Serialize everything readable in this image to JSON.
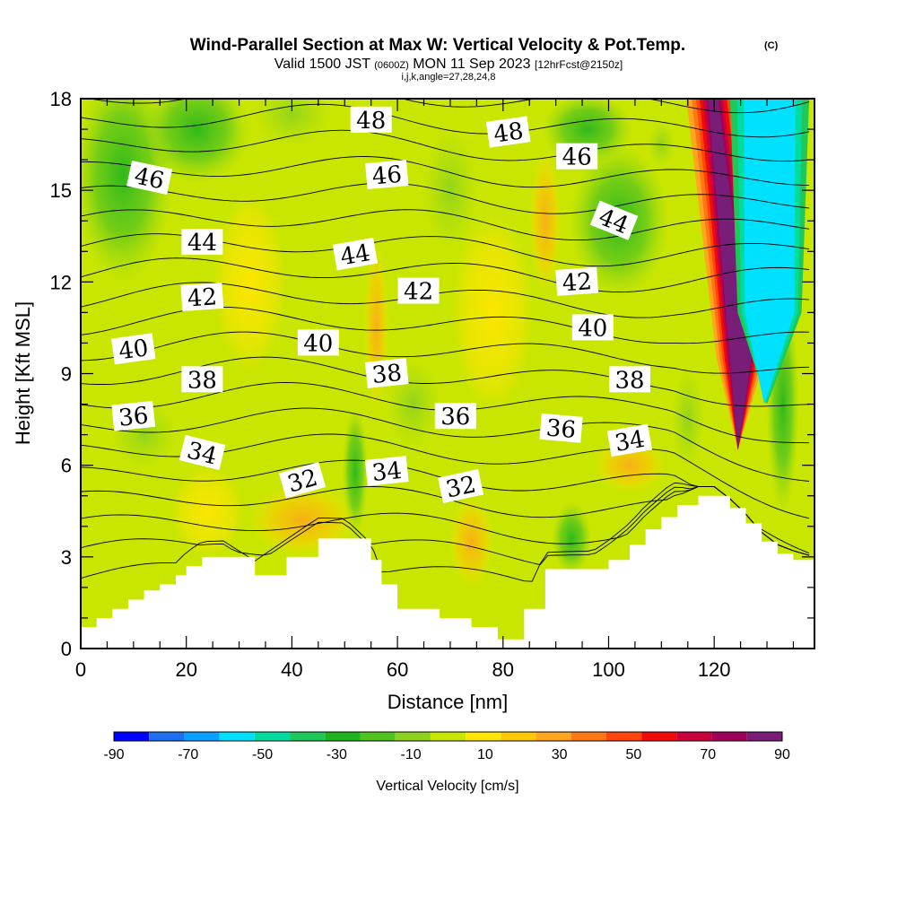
{
  "chart_data": {
    "type": "heatmap",
    "title": "Wind-Parallel Section at Max W: Vertical Velocity & Pot.Temp.",
    "title_mark": "(C)",
    "subtitle_valid": "Valid 1500 JST",
    "subtitle_utc": "(0600Z)",
    "subtitle_date": "MON 11 Sep 2023",
    "subtitle_fcst": "[12hrFcst@2150z]",
    "subtitle2": "i,j,k,angle=27,28,24,8",
    "xlabel": "Distance [nm]",
    "ylabel": "Height [Kft MSL]",
    "xlim": [
      0,
      139
    ],
    "ylim": [
      0,
      18
    ],
    "x_ticks": [
      0,
      20,
      40,
      60,
      80,
      100,
      120
    ],
    "y_ticks": [
      0,
      3,
      6,
      9,
      12,
      15,
      18
    ],
    "x_tick_labels": [
      "0",
      "20",
      "40",
      "60",
      "80",
      "100",
      "120"
    ],
    "y_tick_labels": [
      "0",
      "3",
      "6",
      "9",
      "12",
      "15",
      "18"
    ],
    "colorbar": {
      "label": "Vertical Velocity [cm/s]",
      "tick_values": [
        -90,
        -70,
        -50,
        -30,
        -10,
        10,
        30,
        50,
        70,
        90
      ],
      "tick_labels": [
        "-90",
        "-70",
        "-50",
        "-30",
        "-10",
        "10",
        "30",
        "50",
        "70",
        "90"
      ],
      "bounds": [
        -90,
        -80,
        -70,
        -60,
        -50,
        -40,
        -30,
        -20,
        -10,
        0,
        10,
        20,
        30,
        40,
        50,
        60,
        70,
        80,
        90
      ],
      "colors": [
        "#0000ff",
        "#1e6ef0",
        "#0aa0ff",
        "#00e1ff",
        "#00dca0",
        "#1ec85a",
        "#1eb41e",
        "#50c31e",
        "#8cd21e",
        "#c8e600",
        "#ffe600",
        "#ffc800",
        "#ffa51e",
        "#ff7814",
        "#ff460a",
        "#f00a0a",
        "#c8003c",
        "#a0005a",
        "#781e78"
      ]
    },
    "terrain": {
      "x": [
        0,
        3,
        6,
        9,
        12,
        15,
        18,
        20,
        23,
        27,
        33,
        39,
        45,
        50,
        55,
        57,
        60,
        62,
        68,
        74,
        79,
        84,
        88,
        92,
        97,
        100,
        104,
        107,
        110,
        113,
        117,
        120,
        123,
        126,
        129,
        132,
        135,
        139
      ],
      "height": [
        0.7,
        1.0,
        1.3,
        1.6,
        1.9,
        2.1,
        2.4,
        2.7,
        3.0,
        3.0,
        2.4,
        3.0,
        3.6,
        3.6,
        2.9,
        2.1,
        1.3,
        1.3,
        1.0,
        0.7,
        0.3,
        1.3,
        2.6,
        2.6,
        2.6,
        2.9,
        3.4,
        3.9,
        4.3,
        4.7,
        5.0,
        5.0,
        4.6,
        4.1,
        3.5,
        3.1,
        2.9,
        2.7
      ]
    },
    "theta_contours": {
      "levels": [
        30,
        31,
        32,
        33,
        34,
        35,
        36,
        37,
        38,
        39,
        40,
        41,
        42,
        43,
        44,
        45,
        46,
        47,
        48,
        49
      ],
      "labels": [
        {
          "value": "48",
          "x": 55,
          "y": 17.3,
          "angle": 0
        },
        {
          "value": "48",
          "x": 81,
          "y": 16.9,
          "angle": -8
        },
        {
          "value": "46",
          "x": 13,
          "y": 15.4,
          "angle": 12
        },
        {
          "value": "46",
          "x": 58,
          "y": 15.5,
          "angle": -5
        },
        {
          "value": "46",
          "x": 94,
          "y": 16.1,
          "angle": 0
        },
        {
          "value": "44",
          "x": 23,
          "y": 13.3,
          "angle": 0
        },
        {
          "value": "44",
          "x": 52,
          "y": 12.9,
          "angle": -10
        },
        {
          "value": "44",
          "x": 101,
          "y": 14.0,
          "angle": 22
        },
        {
          "value": "42",
          "x": 23,
          "y": 11.5,
          "angle": -4
        },
        {
          "value": "42",
          "x": 64,
          "y": 11.7,
          "angle": 0
        },
        {
          "value": "42",
          "x": 94,
          "y": 12.0,
          "angle": -4
        },
        {
          "value": "40",
          "x": 10,
          "y": 9.8,
          "angle": -8
        },
        {
          "value": "40",
          "x": 45,
          "y": 10.0,
          "angle": 0
        },
        {
          "value": "40",
          "x": 97,
          "y": 10.5,
          "angle": 0
        },
        {
          "value": "38",
          "x": 23,
          "y": 8.8,
          "angle": 0
        },
        {
          "value": "38",
          "x": 58,
          "y": 9.0,
          "angle": -6
        },
        {
          "value": "38",
          "x": 104,
          "y": 8.8,
          "angle": 0
        },
        {
          "value": "36",
          "x": 10,
          "y": 7.6,
          "angle": -6
        },
        {
          "value": "36",
          "x": 71,
          "y": 7.6,
          "angle": 0
        },
        {
          "value": "36",
          "x": 91,
          "y": 7.2,
          "angle": 5
        },
        {
          "value": "34",
          "x": 23,
          "y": 6.4,
          "angle": 14
        },
        {
          "value": "34",
          "x": 58,
          "y": 5.8,
          "angle": -6
        },
        {
          "value": "34",
          "x": 104,
          "y": 6.8,
          "angle": -10
        },
        {
          "value": "32",
          "x": 42,
          "y": 5.5,
          "angle": -16
        },
        {
          "value": "32",
          "x": 72,
          "y": 5.3,
          "angle": -12
        }
      ]
    }
  }
}
